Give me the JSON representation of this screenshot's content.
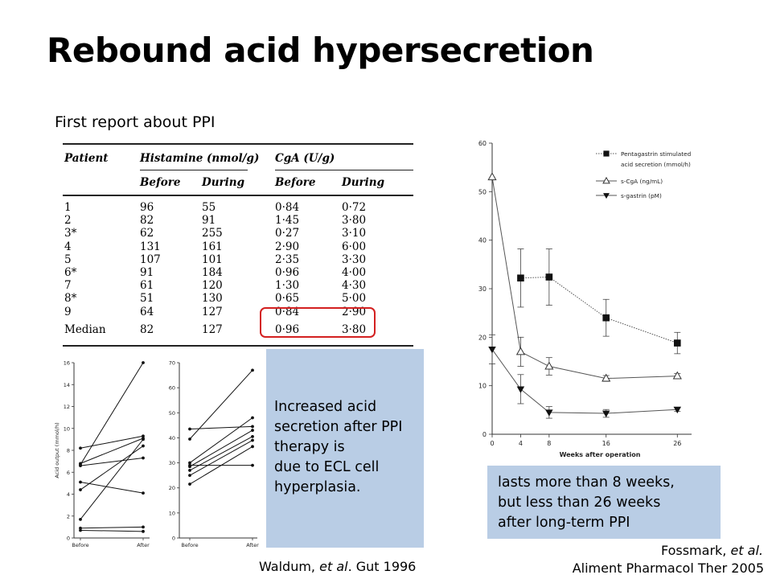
{
  "title": "Rebound acid hypersecretion",
  "subtitle": "First report about PPI",
  "table": {
    "col_headers": [
      "Patient",
      "Histamine (nmol/g)",
      "CgA (U/g)"
    ],
    "sub_headers": [
      "Before",
      "During",
      "Before",
      "During"
    ],
    "rows": [
      [
        "1",
        "96",
        "55",
        "0·84",
        "0·72"
      ],
      [
        "2",
        "82",
        "91",
        "1·45",
        "3·80"
      ],
      [
        "3*",
        "62",
        "255",
        "0·27",
        "3·10"
      ],
      [
        "4",
        "131",
        "161",
        "2·90",
        "6·00"
      ],
      [
        "5",
        "107",
        "101",
        "2·35",
        "3·30"
      ],
      [
        "6*",
        "91",
        "184",
        "0·96",
        "4·00"
      ],
      [
        "7",
        "61",
        "120",
        "1·30",
        "4·30"
      ],
      [
        "8*",
        "51",
        "130",
        "0·65",
        "5·00"
      ],
      [
        "9",
        "64",
        "127",
        "0·84",
        "2·90"
      ]
    ],
    "median": [
      "Median",
      "82",
      "127",
      "0·96",
      "3·80"
    ]
  },
  "callout1": [
    "Increased acid",
    "secretion after PPI",
    "therapy is",
    "due to ECL cell",
    "hyperplasia."
  ],
  "callout2": [
    "lasts more than 8 weeks,",
    "but less than 26 weeks",
    "after long-term PPI"
  ],
  "citation1": {
    "author": "Waldum, ",
    "etal": "et al",
    "rest": ". Gut 1996"
  },
  "citation2": {
    "author": "Fossmark, ",
    "etal": "et al.",
    "journal": "Aliment Pharmacol Ther 2005"
  },
  "chart_data": [
    {
      "type": "line",
      "ylabel": "Acid output (mmol/h)",
      "categories": [
        "Before",
        "After"
      ],
      "ylim": [
        0,
        16
      ],
      "yticks": [
        0,
        2,
        4,
        6,
        8,
        10,
        12,
        14,
        16
      ],
      "series": [
        {
          "values": [
            6.7,
            16.0
          ]
        },
        {
          "values": [
            8.2,
            9.3
          ]
        },
        {
          "values": [
            6.8,
            9.1
          ]
        },
        {
          "values": [
            6.6,
            7.3
          ]
        },
        {
          "values": [
            5.1,
            4.1
          ]
        },
        {
          "values": [
            4.4,
            8.4
          ]
        },
        {
          "values": [
            1.7,
            9.0
          ]
        },
        {
          "values": [
            0.9,
            1.0
          ]
        },
        {
          "values": [
            0.7,
            0.6
          ]
        }
      ]
    },
    {
      "type": "line",
      "categories": [
        "Before",
        "After"
      ],
      "ylim": [
        0,
        70
      ],
      "yticks": [
        0,
        10,
        20,
        30,
        40,
        50,
        60,
        70
      ],
      "series": [
        {
          "values": [
            39.5,
            67.0
          ]
        },
        {
          "values": [
            43.5,
            44.5
          ]
        },
        {
          "values": [
            30.0,
            48.0
          ]
        },
        {
          "values": [
            28.5,
            43.0
          ]
        },
        {
          "values": [
            29.0,
            29.0
          ]
        },
        {
          "values": [
            27.0,
            40.5
          ]
        },
        {
          "values": [
            25.0,
            39.0
          ]
        },
        {
          "values": [
            21.5,
            36.5
          ]
        }
      ]
    },
    {
      "type": "line",
      "xlabel": "Weeks after operation",
      "x": [
        0,
        4,
        8,
        16,
        26
      ],
      "xlim": [
        0,
        28
      ],
      "ylim": [
        0,
        60
      ],
      "yticks": [
        0,
        10,
        20,
        30,
        40,
        50,
        60
      ],
      "legend_position": "top-right",
      "series": [
        {
          "name": "Pentagastrin stimulated acid secretion (mmol/h)",
          "marker": "filled-square",
          "style": "dotted",
          "x": [
            4,
            8,
            16,
            26
          ],
          "values": [
            32.2,
            32.4,
            24.0,
            18.8
          ],
          "err": [
            6.0,
            5.8,
            3.8,
            2.2
          ]
        },
        {
          "name": "s-CgA (ng/mL)",
          "marker": "open-triangle",
          "style": "solid",
          "x": [
            0,
            4,
            8,
            16,
            26
          ],
          "values": [
            53.0,
            17.0,
            14.0,
            11.5,
            12.0
          ],
          "err": [
            0,
            3.0,
            1.8,
            0.6,
            0.5
          ]
        },
        {
          "name": "s-gastrin (pM)",
          "marker": "filled-triangle-down",
          "style": "solid",
          "x": [
            0,
            4,
            8,
            16,
            26
          ],
          "values": [
            17.5,
            9.3,
            4.5,
            4.3,
            5.1
          ],
          "err": [
            3.0,
            3.0,
            1.2,
            0.8,
            0.4
          ]
        }
      ]
    }
  ]
}
